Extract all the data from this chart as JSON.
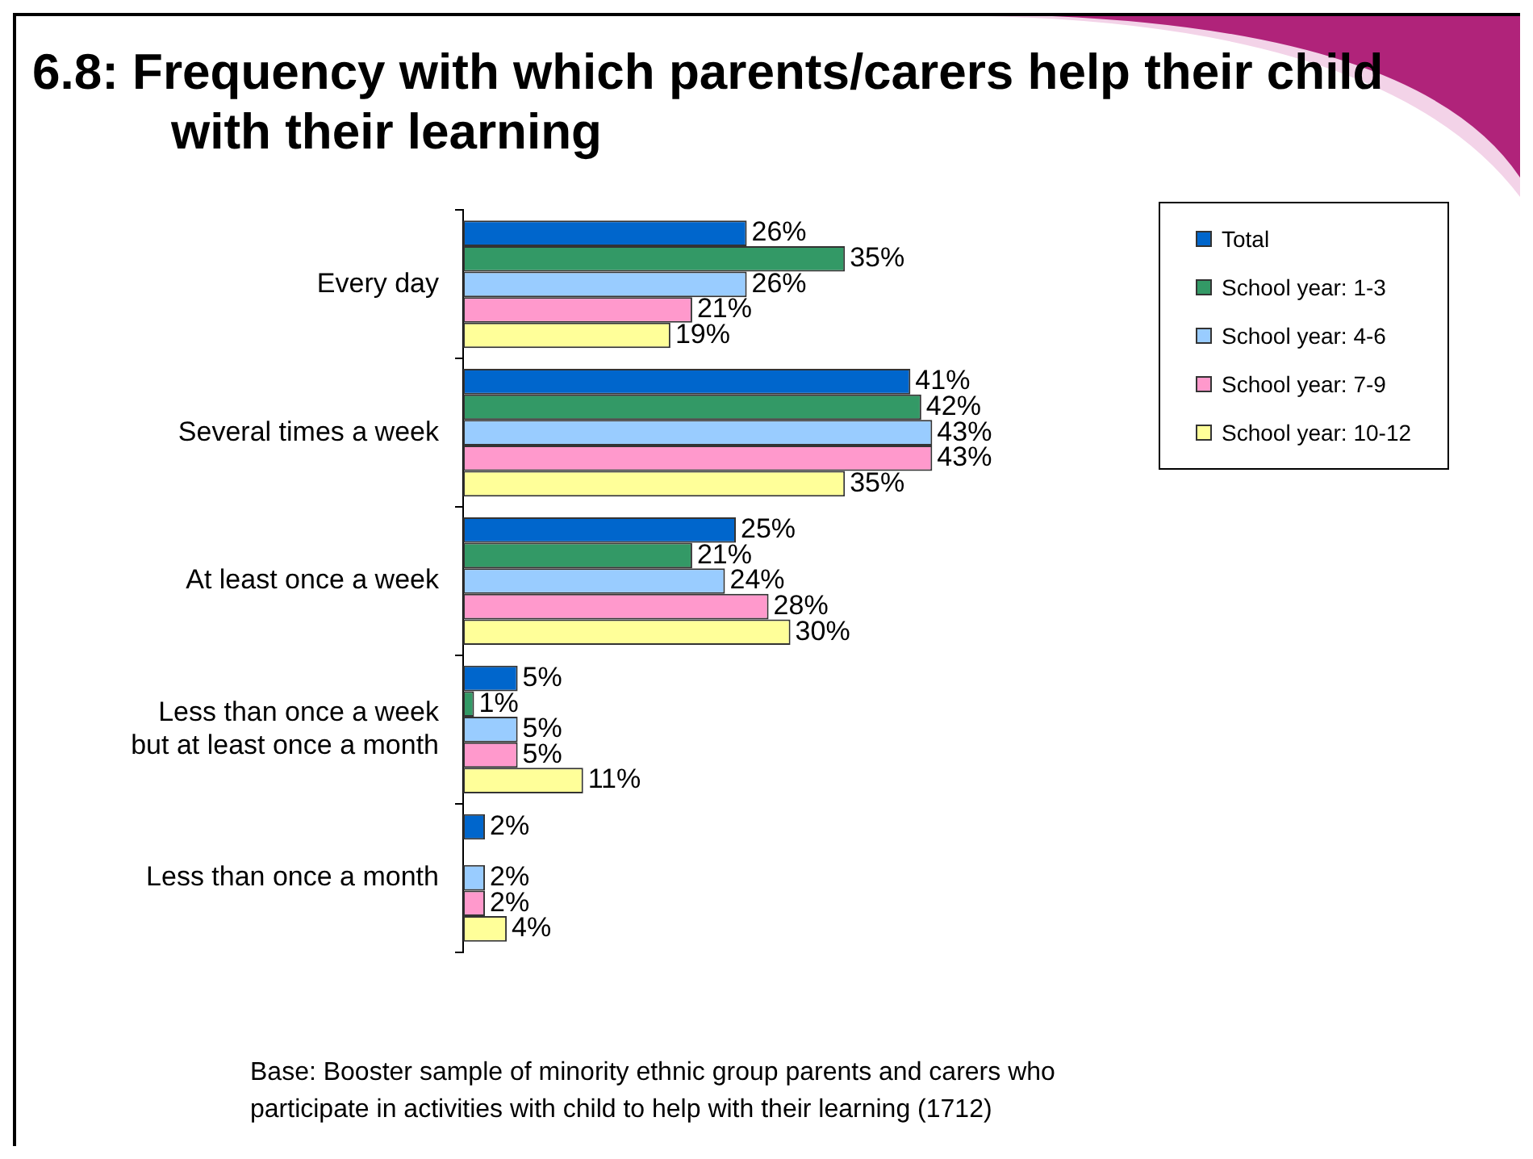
{
  "chart_data": {
    "type": "bar",
    "orientation": "horizontal",
    "title": "6.8: Frequency with which parents/carers help their child with their learning",
    "categories": [
      "Every day",
      "Several times a week",
      "At least once a week",
      "Less than once a week but at least once a month",
      "Less than once a month"
    ],
    "series": [
      {
        "name": "Total",
        "color": "#0066cc",
        "values": [
          26,
          41,
          25,
          5,
          2
        ],
        "value_labels": [
          "26%",
          "41%",
          "25%",
          "5%",
          "2%"
        ]
      },
      {
        "name": "School year: 1-3",
        "color": "#339966",
        "values": [
          35,
          42,
          21,
          1,
          null
        ],
        "value_labels": [
          "35%",
          "42%",
          "21%",
          "1%",
          null
        ]
      },
      {
        "name": "School year: 4-6",
        "color": "#99ccff",
        "values": [
          26,
          43,
          24,
          5,
          2
        ],
        "value_labels": [
          "26%",
          "43%",
          "24%",
          "5%",
          "2%"
        ]
      },
      {
        "name": "School year: 7-9",
        "color": "#ff99cc",
        "values": [
          21,
          43,
          28,
          5,
          2
        ],
        "value_labels": [
          "21%",
          "43%",
          "28%",
          "5%",
          "2%"
        ]
      },
      {
        "name": "School year: 10-12",
        "color": "#ffff99",
        "values": [
          19,
          35,
          30,
          11,
          4
        ],
        "value_labels": [
          "19%",
          "35%",
          "30%",
          "11%",
          "4%"
        ]
      }
    ],
    "grid": false,
    "legend": "top right",
    "tick_labels": "y",
    "annotations": [
      "Base: Booster sample of minority ethnic group parents and carers who participate in activities with child to help with their learning (1712)"
    ]
  }
}
